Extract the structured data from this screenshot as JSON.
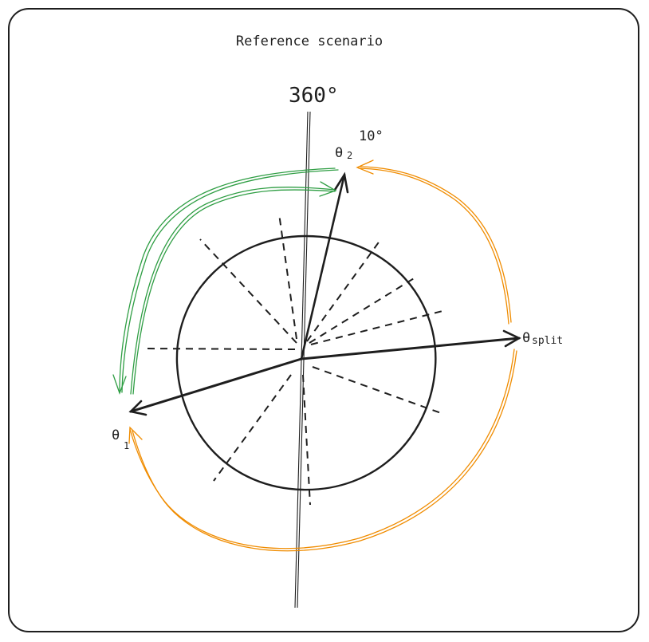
{
  "title": "Reference scenario",
  "labels": {
    "top_angle": "360°",
    "small_angle": "10°",
    "theta2_base": "θ",
    "theta2_sub": "2",
    "theta1_base": "θ",
    "theta1_sub": "1",
    "theta_split_base": "θ",
    "theta_split_sub": "split"
  },
  "colors": {
    "stroke": "#1e1e1e",
    "green_arrow": "#2f9e44",
    "orange_arrow": "#f08c00"
  }
}
